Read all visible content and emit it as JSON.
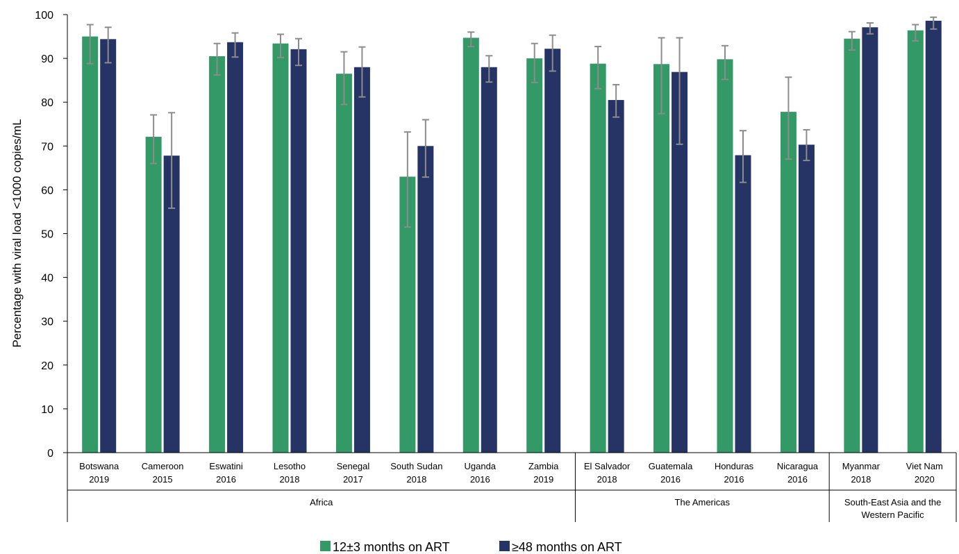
{
  "chart_data": {
    "type": "bar",
    "ylabel": "Percentage with viral load <1000 copies/mL",
    "ylim": [
      0,
      100
    ],
    "yticks": [
      0,
      10,
      20,
      30,
      40,
      50,
      60,
      70,
      80,
      90,
      100
    ],
    "grid": false,
    "legend_position": "bottom",
    "categories": [
      {
        "name": "Botswana",
        "year": "2019"
      },
      {
        "name": "Cameroon",
        "year": "2015"
      },
      {
        "name": "Eswatini",
        "year": "2016"
      },
      {
        "name": "Lesotho",
        "year": "2018"
      },
      {
        "name": "Senegal",
        "year": "2017"
      },
      {
        "name": "South Sudan",
        "year": "2018"
      },
      {
        "name": "Uganda",
        "year": "2016"
      },
      {
        "name": "Zambia",
        "year": "2019"
      },
      {
        "name": "El Salvador",
        "year": "2018"
      },
      {
        "name": "Guatemala",
        "year": "2016"
      },
      {
        "name": "Honduras",
        "year": "2016"
      },
      {
        "name": "Nicaragua",
        "year": "2016"
      },
      {
        "name": "Myanmar",
        "year": "2018"
      },
      {
        "name": "Viet Nam",
        "year": "2020"
      }
    ],
    "groups": [
      {
        "lines": [
          "Africa"
        ],
        "start": 0,
        "end": 7
      },
      {
        "lines": [
          "The Americas"
        ],
        "start": 8,
        "end": 11
      },
      {
        "lines": [
          "South-East Asia and the",
          "Western Pacific"
        ],
        "start": 12,
        "end": 13
      }
    ],
    "series": [
      {
        "name": "12±3 months on ART",
        "color": "#339966",
        "values": [
          95.0,
          72.1,
          90.5,
          93.4,
          86.5,
          63.0,
          94.7,
          90.0,
          88.8,
          88.7,
          89.8,
          77.8,
          94.5,
          96.4
        ],
        "err_low": [
          88.8,
          66.0,
          86.2,
          90.2,
          79.5,
          51.5,
          92.7,
          84.5,
          83.1,
          77.4,
          85.2,
          67.0,
          91.9,
          94.0
        ],
        "err_high": [
          97.7,
          77.1,
          93.4,
          95.5,
          91.5,
          73.2,
          96.0,
          93.4,
          92.7,
          94.7,
          92.9,
          85.7,
          96.1,
          97.7
        ]
      },
      {
        "name": "≥48 months on ART",
        "color": "#253465",
        "values": [
          94.4,
          67.8,
          93.7,
          92.1,
          88.0,
          70.0,
          88.0,
          92.2,
          80.5,
          86.9,
          67.9,
          70.3,
          97.1,
          98.6
        ],
        "err_low": [
          89.0,
          55.8,
          90.3,
          88.4,
          81.2,
          62.9,
          84.6,
          87.1,
          76.6,
          70.4,
          61.7,
          66.7,
          95.6,
          96.7
        ],
        "err_high": [
          97.1,
          77.6,
          95.8,
          94.5,
          92.6,
          76.0,
          90.6,
          95.3,
          84.0,
          94.7,
          73.5,
          73.7,
          98.1,
          99.4
        ]
      }
    ]
  }
}
